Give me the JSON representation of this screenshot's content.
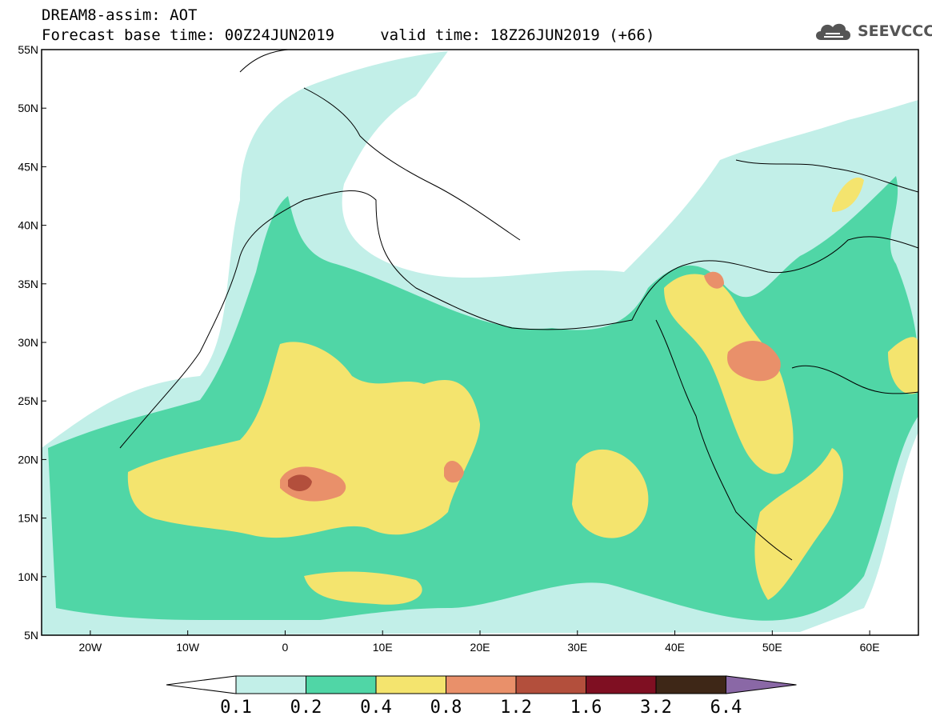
{
  "header": {
    "title_line1": "DREAM8-assim: AOT",
    "title_line2": "Forecast base time: 00Z24JUN2019     valid time: 18Z26JUN2019 (+66)"
  },
  "logo": {
    "text": "SEEVCCC",
    "icon": "cloud-icon"
  },
  "map": {
    "lat_ticks": [
      "55N",
      "50N",
      "45N",
      "40N",
      "35N",
      "30N",
      "25N",
      "20N",
      "15N",
      "10N",
      "5N"
    ],
    "lon_ticks": [
      "20W",
      "10W",
      "0",
      "10E",
      "20E",
      "30E",
      "40E",
      "50E",
      "60E"
    ],
    "extent": {
      "lon_min": -25,
      "lon_max": 65,
      "lat_min": 5,
      "lat_max": 55
    }
  },
  "colorbar": {
    "labels": [
      "0.1",
      "0.2",
      "0.4",
      "0.8",
      "1.2",
      "1.6",
      "3.2",
      "6.4"
    ],
    "colors": [
      "#ffffff",
      "#c2efe8",
      "#50d6a6",
      "#f4e46e",
      "#e9906a",
      "#b34f3c",
      "#7f0f22",
      "#3e2717",
      "#8a68a6"
    ]
  },
  "colors": {
    "level_0.1": "#c2efe8",
    "level_0.2": "#50d6a6",
    "level_0.4": "#f4e46e",
    "level_0.8": "#e9906a",
    "level_1.2": "#b34f3c"
  }
}
